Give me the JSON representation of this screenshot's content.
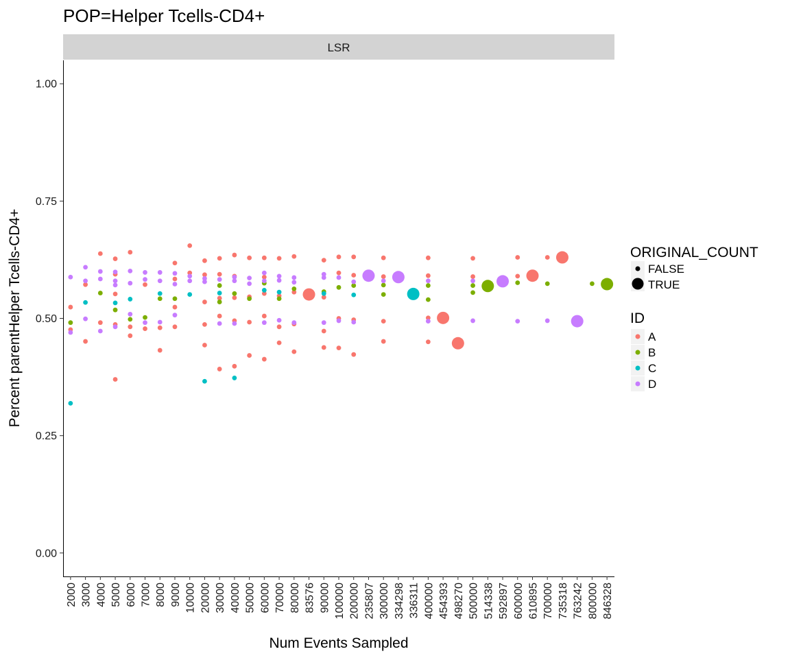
{
  "chart_data": {
    "type": "scatter",
    "title": "POP=Helper Tcells-CD4+",
    "facet_label": "LSR",
    "xlabel": "Num Events Sampled",
    "ylabel": "Percent parentHelper Tcells-CD4+",
    "ylim": [
      -0.05,
      1.05
    ],
    "yticks": [
      "0.00",
      "0.25",
      "0.50",
      "0.75",
      "1.00"
    ],
    "ytick_values": [
      0,
      0.25,
      0.5,
      0.75,
      1.0
    ],
    "categories": [
      "2000",
      "3000",
      "4000",
      "5000",
      "6000",
      "7000",
      "8000",
      "9000",
      "10000",
      "20000",
      "30000",
      "40000",
      "50000",
      "60000",
      "70000",
      "80000",
      "83576",
      "90000",
      "100000",
      "200000",
      "235807",
      "300000",
      "334298",
      "336311",
      "400000",
      "454393",
      "498270",
      "500000",
      "514338",
      "592897",
      "600000",
      "610895",
      "700000",
      "735318",
      "763242",
      "800000",
      "846328"
    ],
    "grid": false,
    "colors": {
      "A": "#F8766D",
      "B": "#7CAE00",
      "C": "#00BFC4",
      "D": "#C77CFF"
    },
    "legend": {
      "placement": "right",
      "size": {
        "title": "ORIGINAL_COUNT",
        "entries": [
          "FALSE",
          "TRUE"
        ]
      },
      "color": {
        "title": "ID",
        "entries": [
          "A",
          "B",
          "C",
          "D"
        ]
      }
    },
    "series": [
      {
        "name": "A",
        "points": [
          [
            "2000",
            0.524
          ],
          [
            "2000",
            0.476
          ],
          [
            "3000",
            0.572
          ],
          [
            "3000",
            0.451
          ],
          [
            "4000",
            0.638
          ],
          [
            "4000",
            0.491
          ],
          [
            "5000",
            0.627
          ],
          [
            "5000",
            0.594
          ],
          [
            "5000",
            0.552
          ],
          [
            "5000",
            0.487
          ],
          [
            "5000",
            0.37
          ],
          [
            "6000",
            0.641
          ],
          [
            "6000",
            0.482
          ],
          [
            "6000",
            0.463
          ],
          [
            "7000",
            0.572
          ],
          [
            "7000",
            0.478
          ],
          [
            "8000",
            0.48
          ],
          [
            "8000",
            0.432
          ],
          [
            "9000",
            0.618
          ],
          [
            "9000",
            0.584
          ],
          [
            "9000",
            0.524
          ],
          [
            "9000",
            0.482
          ],
          [
            "10000",
            0.655
          ],
          [
            "10000",
            0.597
          ],
          [
            "20000",
            0.623
          ],
          [
            "20000",
            0.593
          ],
          [
            "20000",
            0.535
          ],
          [
            "20000",
            0.487
          ],
          [
            "20000",
            0.443
          ],
          [
            "30000",
            0.628
          ],
          [
            "30000",
            0.594
          ],
          [
            "30000",
            0.543
          ],
          [
            "30000",
            0.505
          ],
          [
            "30000",
            0.392
          ],
          [
            "40000",
            0.635
          ],
          [
            "40000",
            0.59
          ],
          [
            "40000",
            0.544
          ],
          [
            "40000",
            0.495
          ],
          [
            "40000",
            0.398
          ],
          [
            "50000",
            0.629
          ],
          [
            "50000",
            0.546
          ],
          [
            "50000",
            0.492
          ],
          [
            "50000",
            0.421
          ],
          [
            "60000",
            0.629
          ],
          [
            "60000",
            0.588
          ],
          [
            "60000",
            0.553
          ],
          [
            "60000",
            0.505
          ],
          [
            "60000",
            0.413
          ],
          [
            "70000",
            0.628
          ],
          [
            "70000",
            0.548
          ],
          [
            "70000",
            0.482
          ],
          [
            "70000",
            0.448
          ],
          [
            "80000",
            0.632
          ],
          [
            "80000",
            0.556
          ],
          [
            "80000",
            0.488
          ],
          [
            "80000",
            0.429
          ],
          [
            "90000",
            0.624
          ],
          [
            "90000",
            0.545
          ],
          [
            "90000",
            0.473
          ],
          [
            "90000",
            0.438
          ],
          [
            "100000",
            0.631
          ],
          [
            "100000",
            0.597
          ],
          [
            "100000",
            0.5
          ],
          [
            "100000",
            0.437
          ],
          [
            "200000",
            0.631
          ],
          [
            "200000",
            0.592
          ],
          [
            "200000",
            0.497
          ],
          [
            "200000",
            0.423
          ],
          [
            "300000",
            0.629
          ],
          [
            "300000",
            0.589
          ],
          [
            "300000",
            0.494
          ],
          [
            "300000",
            0.451
          ],
          [
            "400000",
            0.629
          ],
          [
            "400000",
            0.591
          ],
          [
            "400000",
            0.501
          ],
          [
            "400000",
            0.45
          ],
          [
            "500000",
            0.628
          ],
          [
            "500000",
            0.589
          ],
          [
            "600000",
            0.63
          ],
          [
            "600000",
            0.59
          ],
          [
            "700000",
            0.63
          ]
        ]
      },
      {
        "name": "B",
        "points": [
          [
            "2000",
            0.491
          ],
          [
            "4000",
            0.554
          ],
          [
            "5000",
            0.518
          ],
          [
            "6000",
            0.498
          ],
          [
            "7000",
            0.502
          ],
          [
            "8000",
            0.542
          ],
          [
            "9000",
            0.542
          ],
          [
            "30000",
            0.57
          ],
          [
            "30000",
            0.535
          ],
          [
            "40000",
            0.553
          ],
          [
            "50000",
            0.542
          ],
          [
            "60000",
            0.575
          ],
          [
            "70000",
            0.542
          ],
          [
            "80000",
            0.563
          ],
          [
            "90000",
            0.557
          ],
          [
            "100000",
            0.566
          ],
          [
            "200000",
            0.57
          ],
          [
            "300000",
            0.551
          ],
          [
            "300000",
            0.571
          ],
          [
            "400000",
            0.57
          ],
          [
            "400000",
            0.54
          ],
          [
            "500000",
            0.555
          ],
          [
            "500000",
            0.57
          ],
          [
            "600000",
            0.576
          ],
          [
            "700000",
            0.574
          ],
          [
            "800000",
            0.574
          ]
        ]
      },
      {
        "name": "C",
        "points": [
          [
            "2000",
            0.319
          ],
          [
            "3000",
            0.534
          ],
          [
            "5000",
            0.533
          ],
          [
            "6000",
            0.541
          ],
          [
            "8000",
            0.553
          ],
          [
            "10000",
            0.551
          ],
          [
            "20000",
            0.366
          ],
          [
            "30000",
            0.554
          ],
          [
            "40000",
            0.373
          ],
          [
            "60000",
            0.56
          ],
          [
            "70000",
            0.556
          ],
          [
            "90000",
            0.553
          ],
          [
            "200000",
            0.55
          ]
        ]
      },
      {
        "name": "D",
        "points": [
          [
            "2000",
            0.588
          ],
          [
            "2000",
            0.47
          ],
          [
            "3000",
            0.609
          ],
          [
            "3000",
            0.58
          ],
          [
            "3000",
            0.499
          ],
          [
            "4000",
            0.6
          ],
          [
            "4000",
            0.584
          ],
          [
            "4000",
            0.473
          ],
          [
            "5000",
            0.599
          ],
          [
            "5000",
            0.58
          ],
          [
            "5000",
            0.571
          ],
          [
            "5000",
            0.482
          ],
          [
            "6000",
            0.601
          ],
          [
            "6000",
            0.575
          ],
          [
            "6000",
            0.509
          ],
          [
            "7000",
            0.598
          ],
          [
            "7000",
            0.583
          ],
          [
            "7000",
            0.491
          ],
          [
            "8000",
            0.598
          ],
          [
            "8000",
            0.58
          ],
          [
            "8000",
            0.492
          ],
          [
            "9000",
            0.596
          ],
          [
            "9000",
            0.573
          ],
          [
            "9000",
            0.507
          ],
          [
            "10000",
            0.59
          ],
          [
            "10000",
            0.58
          ],
          [
            "20000",
            0.585
          ],
          [
            "20000",
            0.578
          ],
          [
            "30000",
            0.583
          ],
          [
            "30000",
            0.489
          ],
          [
            "40000",
            0.588
          ],
          [
            "40000",
            0.58
          ],
          [
            "40000",
            0.489
          ],
          [
            "50000",
            0.586
          ],
          [
            "50000",
            0.574
          ],
          [
            "60000",
            0.597
          ],
          [
            "60000",
            0.58
          ],
          [
            "60000",
            0.491
          ],
          [
            "70000",
            0.59
          ],
          [
            "70000",
            0.581
          ],
          [
            "70000",
            0.496
          ],
          [
            "80000",
            0.587
          ],
          [
            "80000",
            0.577
          ],
          [
            "80000",
            0.491
          ],
          [
            "90000",
            0.594
          ],
          [
            "90000",
            0.587
          ],
          [
            "90000",
            0.491
          ],
          [
            "100000",
            0.587
          ],
          [
            "100000",
            0.495
          ],
          [
            "200000",
            0.578
          ],
          [
            "200000",
            0.492
          ],
          [
            "300000",
            0.58
          ],
          [
            "400000",
            0.58
          ],
          [
            "400000",
            0.494
          ],
          [
            "500000",
            0.58
          ],
          [
            "500000",
            0.495
          ],
          [
            "600000",
            0.494
          ],
          [
            "700000",
            0.495
          ]
        ]
      }
    ],
    "original_count_points": [
      {
        "id": "A",
        "x": "83576",
        "y": 0.551
      },
      {
        "id": "D",
        "x": "235807",
        "y": 0.591
      },
      {
        "id": "D",
        "x": "334298",
        "y": 0.588
      },
      {
        "id": "C",
        "x": "336311",
        "y": 0.552
      },
      {
        "id": "A",
        "x": "454393",
        "y": 0.501
      },
      {
        "id": "A",
        "x": "498270",
        "y": 0.447
      },
      {
        "id": "B",
        "x": "514338",
        "y": 0.569
      },
      {
        "id": "D",
        "x": "592897",
        "y": 0.579
      },
      {
        "id": "A",
        "x": "610895",
        "y": 0.591
      },
      {
        "id": "A",
        "x": "735318",
        "y": 0.63
      },
      {
        "id": "D",
        "x": "763242",
        "y": 0.494
      },
      {
        "id": "B",
        "x": "846328",
        "y": 0.573
      }
    ]
  }
}
